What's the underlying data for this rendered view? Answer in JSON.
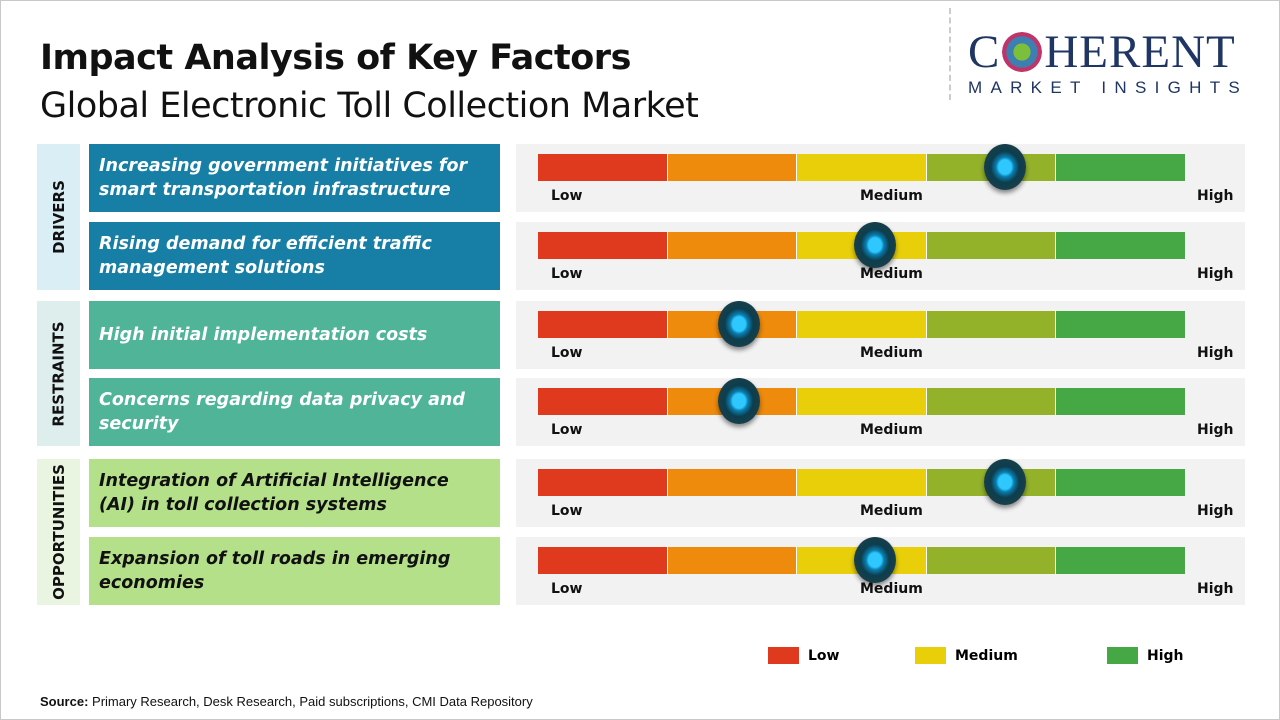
{
  "header": {
    "title": "Impact Analysis of Key Factors",
    "subtitle": "Global Electronic Toll Collection Market"
  },
  "logo": {
    "top": "COHERENT",
    "top_left": "C",
    "top_right": "HERENT",
    "bottom": "MARKET INSIGHTS"
  },
  "chart_data": {
    "type": "gauge",
    "scale_labels": [
      "Low",
      "Medium",
      "High"
    ],
    "scale_range": [
      0,
      1
    ],
    "segment_colors": [
      "#e03a1e",
      "#ee8a0c",
      "#e8cf0a",
      "#93b22a",
      "#45a845"
    ],
    "categories": [
      {
        "name": "DRIVERS",
        "bg": "#daeef6",
        "box": "#177fa6",
        "text": "#ffffff",
        "factors": [
          {
            "label": "Increasing government initiatives for smart transportation infrastructure",
            "impact": 0.72
          },
          {
            "label": "Rising demand for efficient traffic management solutions",
            "impact": 0.52
          }
        ]
      },
      {
        "name": "RESTRAINTS",
        "bg": "#deeeec",
        "box": "#4fb498",
        "text": "#ffffff",
        "factors": [
          {
            "label": "High initial implementation costs",
            "impact": 0.31
          },
          {
            "label": "Concerns regarding data privacy and security",
            "impact": 0.31
          }
        ]
      },
      {
        "name": "OPPORTUNITIES",
        "bg": "#e9f4e1",
        "box": "#b5e08a",
        "text": "#111111",
        "factors": [
          {
            "label": "Integration of Artificial Intelligence (AI) in toll collection systems",
            "impact": 0.72
          },
          {
            "label": "Expansion of toll roads in emerging economies",
            "impact": 0.52
          }
        ]
      }
    ],
    "legend": [
      {
        "label": "Low",
        "color": "#e03a1e"
      },
      {
        "label": "Medium",
        "color": "#e8cf0a"
      },
      {
        "label": "High",
        "color": "#45a845"
      }
    ]
  },
  "footer": {
    "source_label": "Source:",
    "source_text": " Primary Research, Desk Research, Paid subscriptions, CMI Data Repository"
  }
}
